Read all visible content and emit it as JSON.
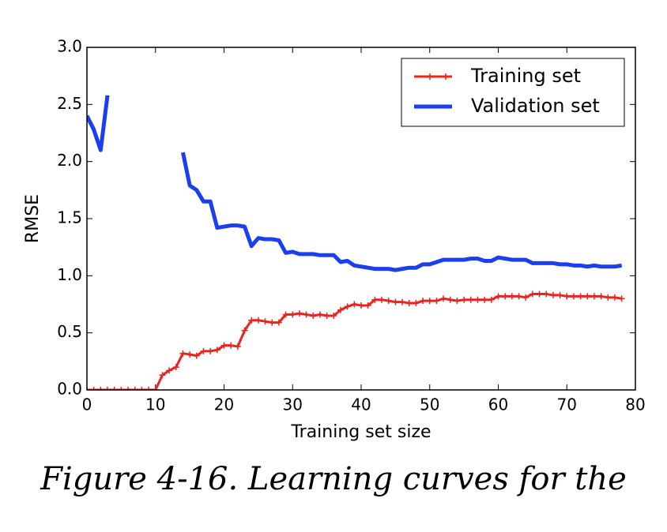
{
  "chart_data": {
    "type": "line",
    "x_label": "Training set size",
    "y_label": "RMSE",
    "caption": "Figure 4-16. Learning curves for the",
    "x": [
      0,
      1,
      2,
      3,
      4,
      5,
      6,
      7,
      8,
      9,
      10,
      11,
      12,
      13,
      14,
      15,
      16,
      17,
      18,
      19,
      20,
      21,
      22,
      23,
      24,
      25,
      26,
      27,
      28,
      29,
      30,
      31,
      32,
      33,
      34,
      35,
      36,
      37,
      38,
      39,
      40,
      41,
      42,
      43,
      44,
      45,
      46,
      47,
      48,
      49,
      50,
      51,
      52,
      53,
      54,
      55,
      56,
      57,
      58,
      59,
      60,
      61,
      62,
      63,
      64,
      65,
      66,
      67,
      68,
      69,
      70,
      71,
      72,
      73,
      74,
      75,
      76,
      77,
      78
    ],
    "series": [
      {
        "name": "Training set",
        "color": "#e8251f",
        "marker": "+",
        "values": [
          0,
          0,
          0,
          0,
          0,
          0,
          0,
          0,
          0,
          0,
          0,
          0.13,
          0.17,
          0.2,
          0.32,
          0.31,
          0.3,
          0.34,
          0.34,
          0.35,
          0.39,
          0.39,
          0.38,
          0.52,
          0.61,
          0.61,
          0.6,
          0.59,
          0.59,
          0.66,
          0.66,
          0.67,
          0.66,
          0.65,
          0.66,
          0.65,
          0.65,
          0.7,
          0.73,
          0.75,
          0.74,
          0.74,
          0.79,
          0.79,
          0.78,
          0.77,
          0.77,
          0.76,
          0.76,
          0.78,
          0.78,
          0.78,
          0.8,
          0.79,
          0.78,
          0.79,
          0.79,
          0.79,
          0.79,
          0.79,
          0.82,
          0.82,
          0.82,
          0.82,
          0.81,
          0.84,
          0.84,
          0.84,
          0.83,
          0.83,
          0.82,
          0.82,
          0.82,
          0.82,
          0.82,
          0.82,
          0.81,
          0.81,
          0.8
        ]
      },
      {
        "name": "Validation set",
        "color": "#1a3ef0",
        "values": [
          2.4,
          2.28,
          2.1,
          2.58,
          null,
          null,
          null,
          null,
          null,
          null,
          null,
          null,
          null,
          null,
          2.08,
          1.79,
          1.75,
          1.65,
          1.65,
          1.42,
          1.43,
          1.44,
          1.44,
          1.43,
          1.26,
          1.33,
          1.32,
          1.32,
          1.31,
          1.2,
          1.21,
          1.19,
          1.19,
          1.19,
          1.18,
          1.18,
          1.18,
          1.12,
          1.13,
          1.09,
          1.08,
          1.07,
          1.06,
          1.06,
          1.06,
          1.05,
          1.06,
          1.07,
          1.07,
          1.1,
          1.1,
          1.12,
          1.14,
          1.14,
          1.14,
          1.14,
          1.15,
          1.15,
          1.13,
          1.13,
          1.16,
          1.15,
          1.14,
          1.14,
          1.14,
          1.11,
          1.11,
          1.11,
          1.11,
          1.1,
          1.1,
          1.09,
          1.09,
          1.08,
          1.09,
          1.08,
          1.08,
          1.08,
          1.09
        ]
      }
    ],
    "xlim": [
      0,
      80
    ],
    "xticks": [
      0,
      10,
      20,
      30,
      40,
      50,
      60,
      70,
      80
    ],
    "ylim": [
      0,
      3
    ],
    "yticks": [
      {
        "value": 0,
        "label": "0.0"
      },
      0.5,
      {
        "value": 1,
        "label": "1.0"
      },
      1.5,
      {
        "value": 2,
        "label": "2.0"
      },
      2.5,
      {
        "value": 3,
        "label": "3.0"
      }
    ],
    "legend": "upper right"
  }
}
